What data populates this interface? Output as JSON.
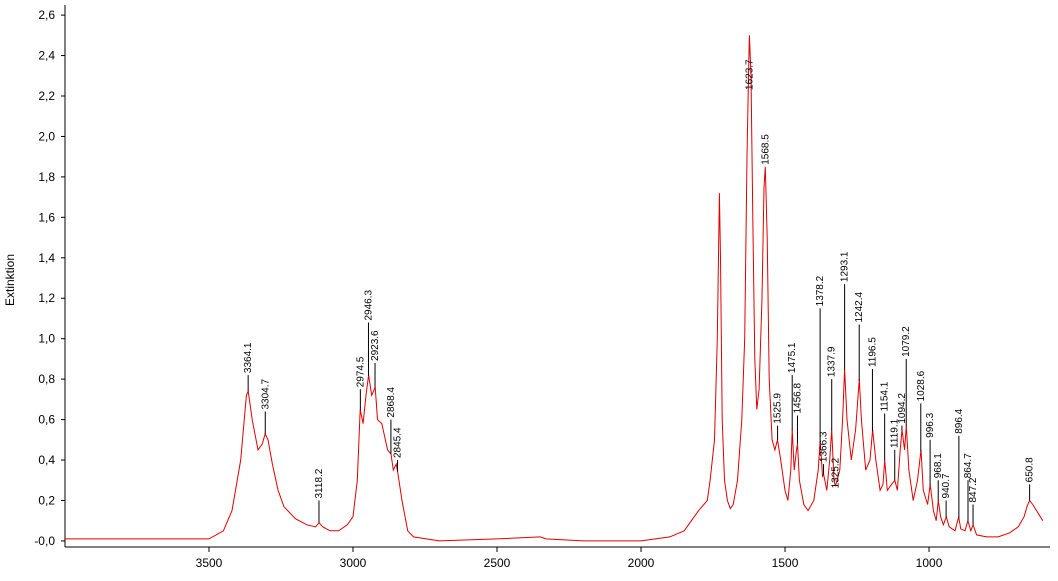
{
  "chart_data": {
    "type": "line",
    "ylabel": "Extinktion",
    "xlim": [
      4000,
      580
    ],
    "ylim": [
      -0.03,
      2.65
    ],
    "xticks": [
      3500,
      3000,
      2500,
      2000,
      1500,
      1000
    ],
    "yticks": [
      {
        "value": 0,
        "label": "-0,0"
      },
      {
        "value": 0.2,
        "label": "0,2"
      },
      {
        "value": 0.4,
        "label": "0,4"
      },
      {
        "value": 0.6,
        "label": "0,6"
      },
      {
        "value": 0.8,
        "label": "0,8"
      },
      {
        "value": 1.0,
        "label": "1,0"
      },
      {
        "value": 1.2,
        "label": "1,2"
      },
      {
        "value": 1.4,
        "label": "1,4"
      },
      {
        "value": 1.6,
        "label": "1,6"
      },
      {
        "value": 1.8,
        "label": "1,8"
      },
      {
        "value": 2.0,
        "label": "2,0"
      },
      {
        "value": 2.2,
        "label": "2,2"
      },
      {
        "value": 2.4,
        "label": "2,4"
      },
      {
        "value": 2.6,
        "label": "2,6"
      }
    ],
    "series": [
      {
        "color": "#e00000",
        "x": [
          4000,
          3700,
          3500,
          3450,
          3420,
          3390,
          3370,
          3364,
          3350,
          3330,
          3315,
          3305,
          3295,
          3280,
          3260,
          3240,
          3200,
          3160,
          3130,
          3118,
          3105,
          3080,
          3050,
          3020,
          3000,
          2985,
          2975,
          2965,
          2955,
          2946,
          2935,
          2923,
          2915,
          2900,
          2880,
          2868,
          2860,
          2850,
          2845,
          2830,
          2810,
          2790,
          2700,
          2500,
          2350,
          2330,
          2200,
          2000,
          1900,
          1850,
          1800,
          1770,
          1760,
          1745,
          1735,
          1728,
          1724,
          1718,
          1710,
          1700,
          1690,
          1680,
          1665,
          1650,
          1640,
          1632,
          1627,
          1623.7,
          1618,
          1612,
          1605,
          1598,
          1590,
          1580,
          1573,
          1568.5,
          1562,
          1555,
          1545,
          1535,
          1526,
          1515,
          1500,
          1490,
          1480,
          1475,
          1468,
          1460,
          1456.8,
          1450,
          1435,
          1420,
          1400,
          1385,
          1378,
          1370,
          1366,
          1355,
          1345,
          1338,
          1330,
          1325,
          1310,
          1300,
          1293,
          1285,
          1270,
          1255,
          1242,
          1235,
          1220,
          1205,
          1196,
          1185,
          1170,
          1160,
          1154,
          1145,
          1130,
          1119,
          1110,
          1100,
          1094,
          1085,
          1079,
          1070,
          1055,
          1040,
          1028,
          1020,
          1005,
          996,
          985,
          975,
          968,
          960,
          950,
          940,
          930,
          910,
          897,
          890,
          875,
          865,
          855,
          847,
          835,
          800,
          760,
          720,
          690,
          670,
          660,
          650.8,
          640,
          605
        ],
        "values": [
          0.01,
          0.01,
          0.01,
          0.05,
          0.15,
          0.4,
          0.72,
          0.74,
          0.6,
          0.45,
          0.48,
          0.53,
          0.5,
          0.38,
          0.25,
          0.17,
          0.11,
          0.08,
          0.07,
          0.09,
          0.07,
          0.05,
          0.05,
          0.08,
          0.12,
          0.3,
          0.65,
          0.58,
          0.72,
          0.82,
          0.72,
          0.76,
          0.6,
          0.58,
          0.45,
          0.43,
          0.35,
          0.38,
          0.34,
          0.2,
          0.05,
          0.02,
          0.0,
          0.01,
          0.02,
          0.01,
          0.0,
          0.0,
          0.02,
          0.05,
          0.15,
          0.2,
          0.3,
          0.5,
          1.0,
          1.72,
          1.4,
          0.6,
          0.3,
          0.2,
          0.16,
          0.18,
          0.3,
          0.6,
          1.0,
          1.9,
          2.3,
          2.5,
          2.3,
          1.6,
          0.9,
          0.65,
          0.75,
          1.2,
          1.75,
          1.85,
          1.5,
          0.8,
          0.5,
          0.45,
          0.5,
          0.4,
          0.25,
          0.2,
          0.35,
          0.55,
          0.35,
          0.45,
          0.48,
          0.3,
          0.18,
          0.15,
          0.2,
          0.35,
          0.5,
          0.32,
          0.33,
          0.25,
          0.4,
          0.55,
          0.3,
          0.27,
          0.35,
          0.6,
          0.85,
          0.6,
          0.4,
          0.55,
          0.8,
          0.6,
          0.35,
          0.4,
          0.55,
          0.4,
          0.25,
          0.28,
          0.4,
          0.25,
          0.28,
          0.3,
          0.25,
          0.45,
          0.55,
          0.45,
          0.57,
          0.35,
          0.2,
          0.3,
          0.45,
          0.25,
          0.18,
          0.28,
          0.15,
          0.1,
          0.2,
          0.12,
          0.08,
          0.12,
          0.07,
          0.05,
          0.12,
          0.06,
          0.05,
          0.1,
          0.05,
          0.08,
          0.03,
          0.02,
          0.02,
          0.04,
          0.07,
          0.12,
          0.17,
          0.2,
          0.18,
          0.1
        ]
      }
    ],
    "peaks": [
      {
        "x": 3364.1,
        "value": 0.82
      },
      {
        "x": 3304.7,
        "value": 0.64
      },
      {
        "x": 3118.2,
        "value": 0.2
      },
      {
        "x": 2974.5,
        "value": 0.75
      },
      {
        "x": 2946.3,
        "value": 1.08
      },
      {
        "x": 2923.6,
        "value": 0.88
      },
      {
        "x": 2868.4,
        "value": 0.6
      },
      {
        "x": 2845.4,
        "value": 0.4
      },
      {
        "x": 1623.7,
        "value": 2.22
      },
      {
        "x": 1568.5,
        "value": 1.85
      },
      {
        "x": 1525.9,
        "value": 0.57
      },
      {
        "x": 1475.1,
        "value": 0.82
      },
      {
        "x": 1456.8,
        "value": 0.62
      },
      {
        "x": 1378.2,
        "value": 1.15
      },
      {
        "x": 1366.3,
        "value": 0.38
      },
      {
        "x": 1337.9,
        "value": 0.8
      },
      {
        "x": 1325.2,
        "value": 0.25
      },
      {
        "x": 1293.1,
        "value": 1.27
      },
      {
        "x": 1242.4,
        "value": 1.07
      },
      {
        "x": 1196.5,
        "value": 0.85
      },
      {
        "x": 1154.1,
        "value": 0.63
      },
      {
        "x": 1119.1,
        "value": 0.45
      },
      {
        "x": 1094.2,
        "value": 0.57
      },
      {
        "x": 1079.2,
        "value": 0.9
      },
      {
        "x": 1028.6,
        "value": 0.68
      },
      {
        "x": 996.3,
        "value": 0.5
      },
      {
        "x": 968.1,
        "value": 0.3
      },
      {
        "x": 940.7,
        "value": 0.2
      },
      {
        "x": 896.4,
        "value": 0.52
      },
      {
        "x": 864.7,
        "value": 0.3
      },
      {
        "x": 847.2,
        "value": 0.18
      },
      {
        "x": 650.8,
        "value": 0.28
      }
    ]
  }
}
